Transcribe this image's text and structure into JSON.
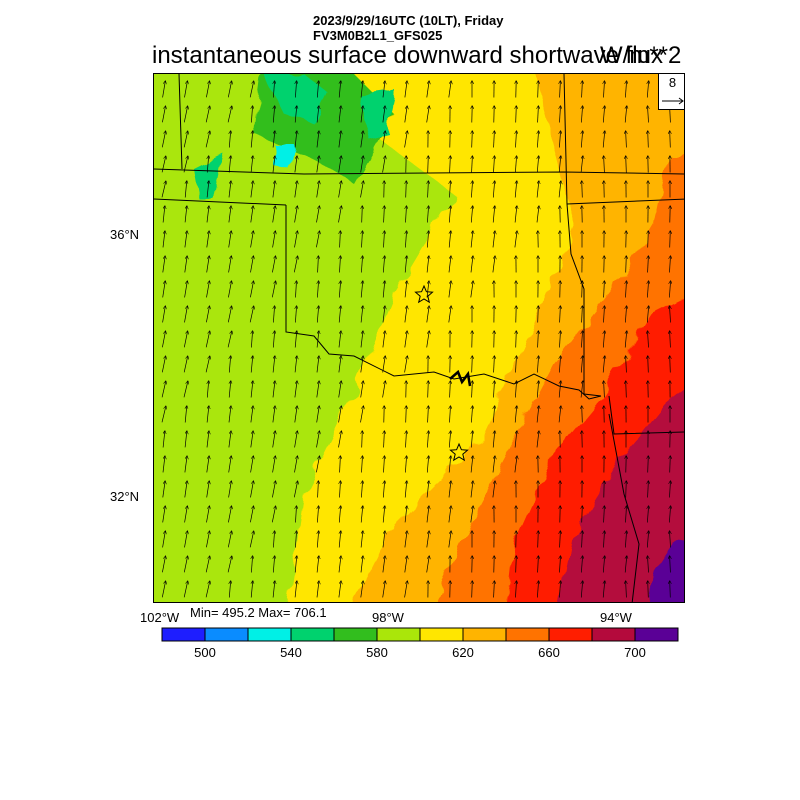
{
  "header": {
    "line1": "2023/9/29/16UTC (10LT), Friday",
    "line2": "FV3M0B2L1_GFS025"
  },
  "title": "instantaneous surface downward shortwave flux",
  "units": "W/m**2",
  "stats": "Min= 495.2 Max= 706.1",
  "vector_reference": {
    "value": "8"
  },
  "axes": {
    "lat_labels": [
      "36°N",
      "32°N"
    ],
    "lon_labels": [
      "102°W",
      "98°W",
      "94°W"
    ]
  },
  "colorbar": {
    "colors": [
      "#1e1eff",
      "#0a8cff",
      "#00f0e6",
      "#00d26e",
      "#32be1e",
      "#aae60a",
      "#ffe600",
      "#ffb400",
      "#ff7300",
      "#ff1e00",
      "#b40a3c",
      "#5a0096"
    ],
    "labels": [
      "500",
      "540",
      "580",
      "620",
      "660",
      "700"
    ]
  },
  "markers": [
    {
      "name": "oklahoma-city-star"
    },
    {
      "name": "dallas-star"
    }
  ]
}
